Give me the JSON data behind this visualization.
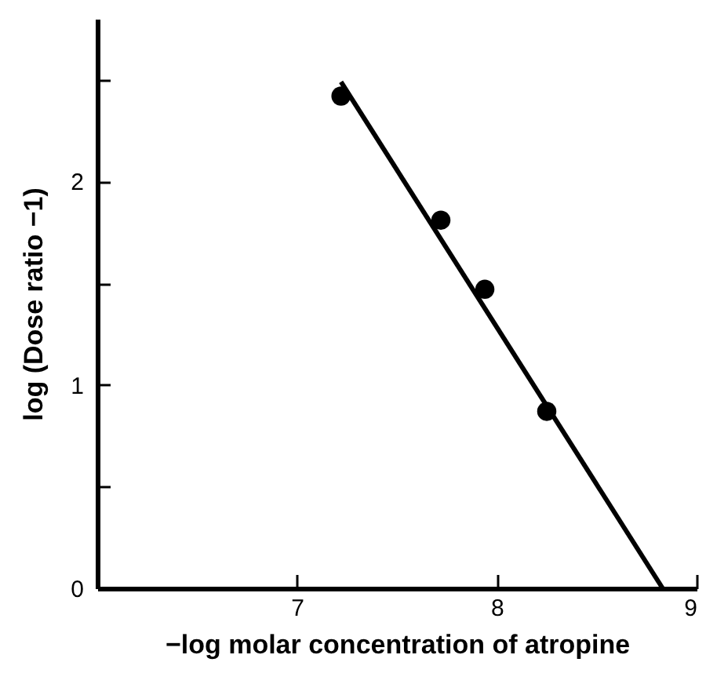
{
  "chart_data": {
    "type": "scatter",
    "xlabel": "−log molar concentration of atropine",
    "ylabel": "log (Dose ratio −1)",
    "xlim": [
      6,
      9
    ],
    "xticks": [
      7,
      8,
      9
    ],
    "ylim": [
      0,
      2.8
    ],
    "yticks": [
      0,
      {
        "value": 0.5,
        "label": null
      },
      1,
      {
        "value": 1.5,
        "label": null
      },
      2,
      {
        "value": 2.5,
        "label": null
      }
    ],
    "marker": "circle",
    "grid": false,
    "series": [
      {
        "color": "#000000",
        "x": [
          7.22,
          7.72,
          7.94,
          8.25
        ],
        "values": [
          2.42,
          1.81,
          1.47,
          0.87
        ]
      },
      {
        "type": "line",
        "color": "#000000",
        "x": [
          7.22,
          8.83
        ],
        "values": [
          2.49,
          0
        ],
        "marker": "none"
      }
    ]
  }
}
